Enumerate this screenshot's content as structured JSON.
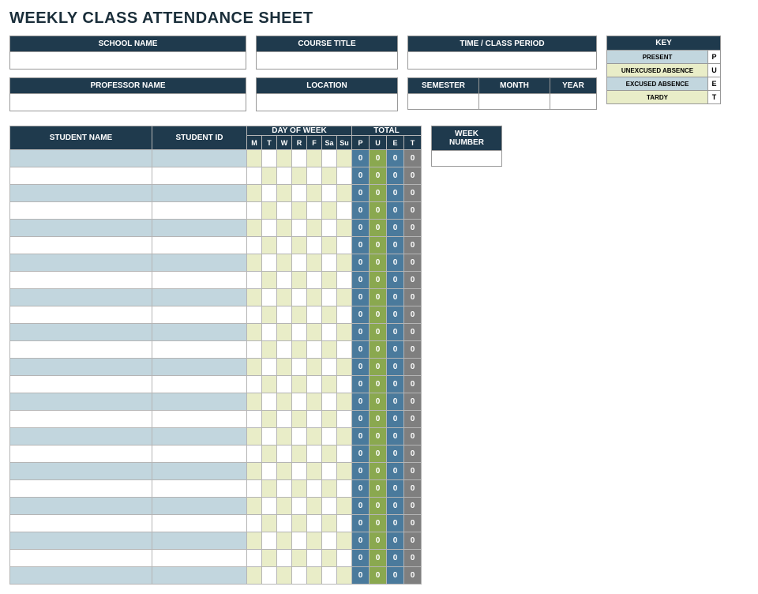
{
  "title": "WEEKLY CLASS ATTENDANCE SHEET",
  "fields": {
    "school_name": {
      "label": "SCHOOL NAME",
      "value": ""
    },
    "course_title": {
      "label": "COURSE TITLE",
      "value": ""
    },
    "time_period": {
      "label": "TIME / CLASS PERIOD",
      "value": ""
    },
    "professor": {
      "label": "PROFESSOR NAME",
      "value": ""
    },
    "location": {
      "label": "LOCATION",
      "value": ""
    },
    "semester": {
      "label": "SEMESTER",
      "value": ""
    },
    "month": {
      "label": "MONTH",
      "value": ""
    },
    "year": {
      "label": "YEAR",
      "value": ""
    },
    "week_number": {
      "label": "WEEK NUMBER",
      "value": ""
    }
  },
  "key": {
    "header": "KEY",
    "rows": [
      {
        "label": "PRESENT",
        "code": "P",
        "bg": "#c2d6de"
      },
      {
        "label": "UNEXCUSED ABSENCE",
        "code": "U",
        "bg": "#e9edc8"
      },
      {
        "label": "EXCUSED ABSENCE",
        "code": "E",
        "bg": "#c2d6de"
      },
      {
        "label": "TARDY",
        "code": "T",
        "bg": "#e9edc8"
      }
    ]
  },
  "table": {
    "headers": {
      "student_name": "STUDENT NAME",
      "student_id": "STUDENT ID",
      "day_of_week": "DAY OF WEEK",
      "total": "TOTAL"
    },
    "days": [
      "M",
      "T",
      "W",
      "R",
      "F",
      "Sa",
      "Su"
    ],
    "totals": [
      "P",
      "U",
      "E",
      "T"
    ],
    "row_count": 25,
    "total_default": "0",
    "colors": {
      "header_bg": "#1f3a4d",
      "header_fg": "#ffffff",
      "row_alt_bg": "#c2d6de",
      "row_bg": "#ffffff",
      "day_alt_bg": "#e9edc8",
      "day_bg": "#ffffff",
      "tot_p_bg": "#4a7a9c",
      "tot_u_bg": "#8aa84f",
      "tot_e_bg": "#4a7a9c",
      "tot_t_bg": "#7f7f7f",
      "border": "#b5b5b5"
    }
  }
}
